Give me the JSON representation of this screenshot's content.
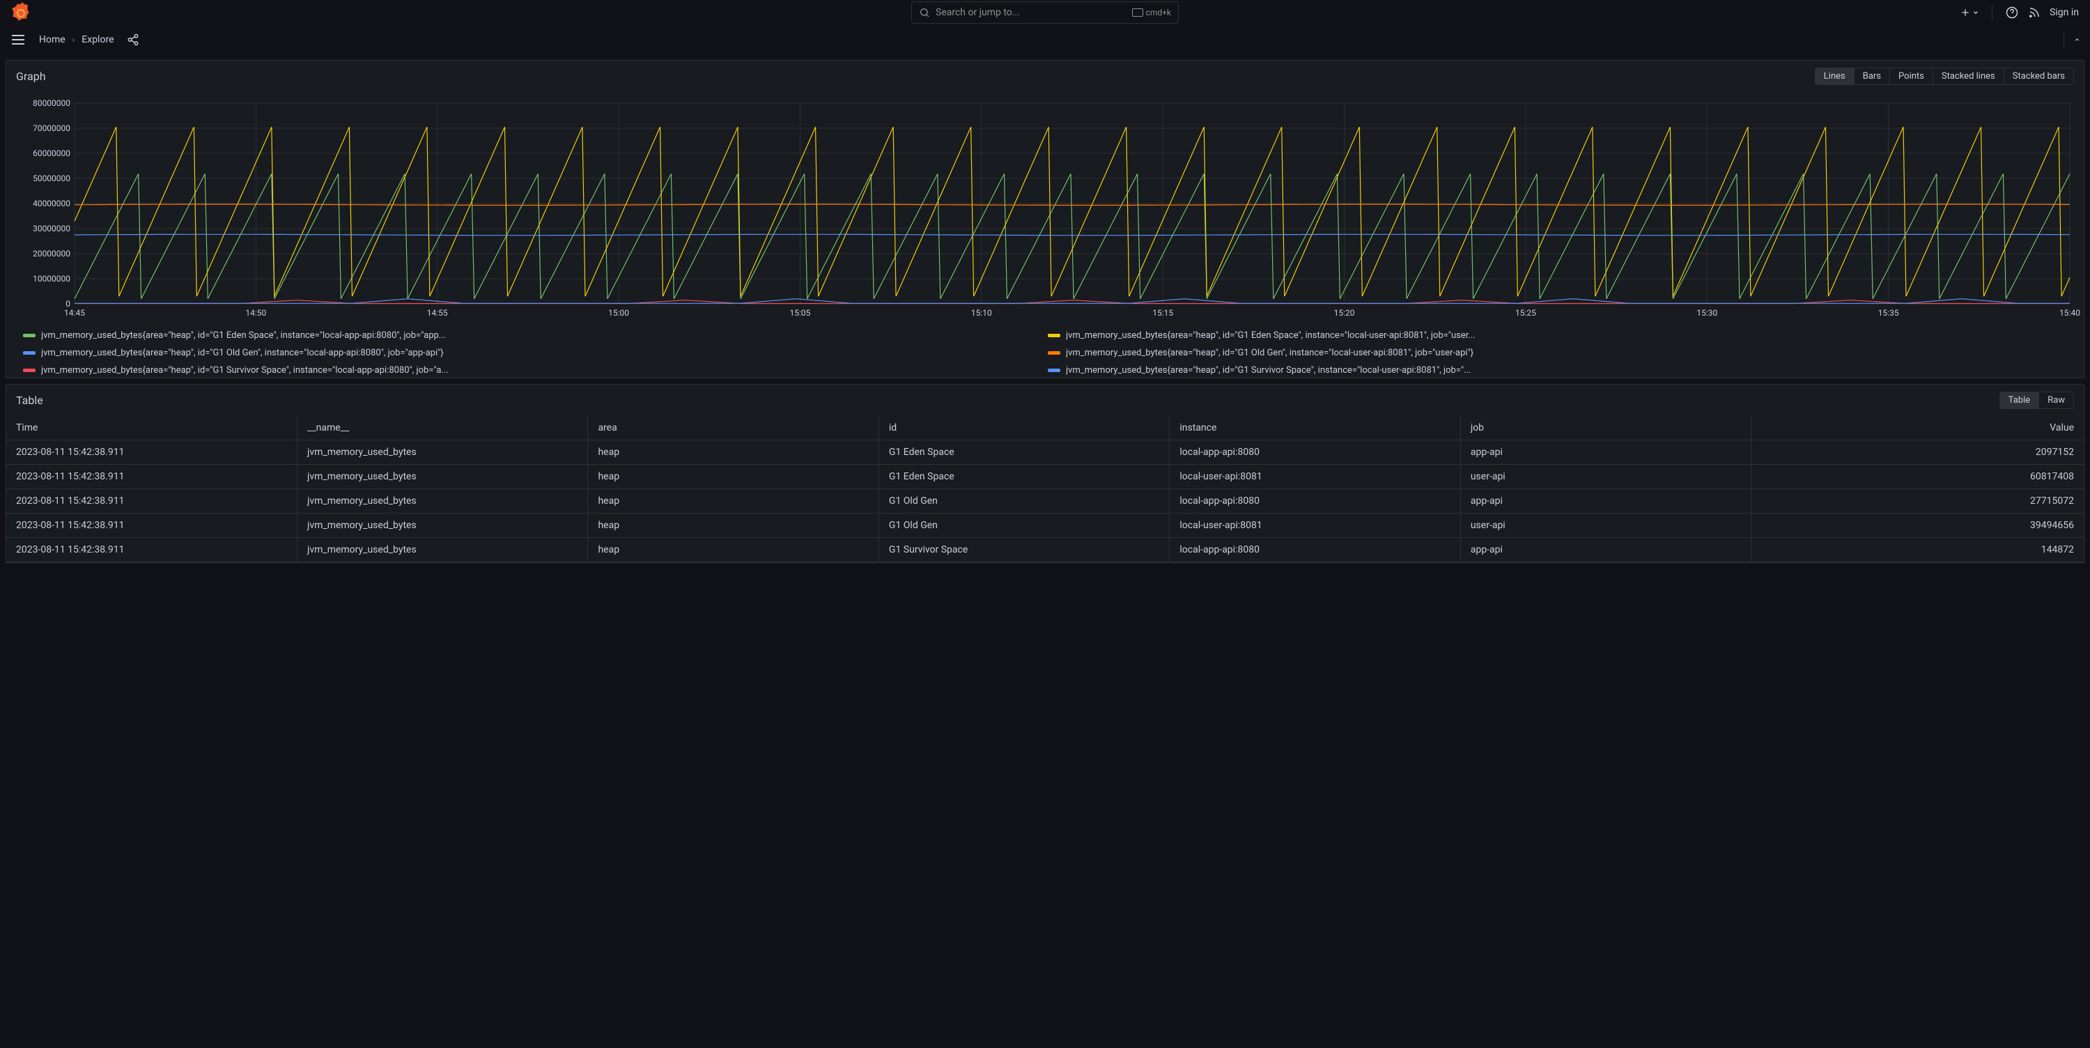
{
  "topbar": {
    "search_placeholder": "Search or jump to...",
    "kbd_hint": "cmd+k",
    "signin": "Sign in"
  },
  "breadcrumb": {
    "home": "Home",
    "explore": "Explore"
  },
  "graph": {
    "title": "Graph",
    "modes": [
      "Lines",
      "Bars",
      "Points",
      "Stacked lines",
      "Stacked bars"
    ],
    "active_mode": 0,
    "type": "line",
    "background_color": "#181b1f",
    "grid_color": "#2c3235",
    "text_color": "#ccccdc",
    "y_axis": {
      "min": 0,
      "max": 80000000,
      "ticks": [
        0,
        10000000,
        20000000,
        30000000,
        40000000,
        50000000,
        60000000,
        70000000,
        80000000
      ],
      "tick_labels": [
        "0",
        "10000000",
        "20000000",
        "30000000",
        "40000000",
        "50000000",
        "60000000",
        "70000000",
        "80000000"
      ]
    },
    "x_axis": {
      "labels": [
        "14:45",
        "14:50",
        "14:55",
        "15:00",
        "15:05",
        "15:10",
        "15:15",
        "15:20",
        "15:25",
        "15:30",
        "15:35",
        "15:40"
      ]
    },
    "series": [
      {
        "label": "jvm_memory_used_bytes{area=\"heap\", id=\"G1 Eden Space\", instance=\"local-app-api:8080\", job=\"app...",
        "color": "#73bf69",
        "shape": "sawtooth",
        "peak": 54000000,
        "trough": 2000000,
        "period": 24,
        "phase": 0,
        "count": 720
      },
      {
        "label": "jvm_memory_used_bytes{area=\"heap\", id=\"G1 Eden Space\", instance=\"local-user-api:8081\", job=\"user...",
        "color": "#f2cc0c",
        "shape": "sawtooth",
        "peak": 73000000,
        "trough": 3000000,
        "period": 28,
        "phase": 12,
        "count": 720
      },
      {
        "label": "jvm_memory_used_bytes{area=\"heap\", id=\"G1 Old Gen\", instance=\"local-app-api:8080\", job=\"app-api\"}",
        "color": "#5794f2",
        "shape": "flat",
        "value": 27500000,
        "count": 720
      },
      {
        "label": "jvm_memory_used_bytes{area=\"heap\", id=\"G1 Old Gen\", instance=\"local-user-api:8081\", job=\"user-api\"}",
        "color": "#ff780a",
        "shape": "flat",
        "value": 39500000,
        "count": 720
      },
      {
        "label": "jvm_memory_used_bytes{area=\"heap\", id=\"G1 Survivor Space\", instance=\"local-app-api:8080\", job=\"a...",
        "color": "#f2495c",
        "shape": "bumpy",
        "base": 150000,
        "amp": 1300000,
        "spikes": [
          80,
          220,
          360,
          500,
          640
        ],
        "count": 720
      },
      {
        "label": "jvm_memory_used_bytes{area=\"heap\", id=\"G1 Survivor Space\", instance=\"local-user-api:8081\", job=\"...",
        "color": "#5794f2",
        "shape": "bumpy",
        "base": 200000,
        "amp": 1800000,
        "spikes": [
          120,
          260,
          400,
          540,
          680
        ],
        "count": 720
      }
    ]
  },
  "table": {
    "title": "Table",
    "modes": [
      "Table",
      "Raw"
    ],
    "active_mode": 0,
    "columns": [
      "Time",
      "__name__",
      "area",
      "id",
      "instance",
      "job",
      "Value"
    ],
    "col_widths": [
      "14%",
      "14%",
      "14%",
      "14%",
      "14%",
      "14%",
      "16%"
    ],
    "rows": [
      [
        "2023-08-11 15:42:38.911",
        "jvm_memory_used_bytes",
        "heap",
        "G1 Eden Space",
        "local-app-api:8080",
        "app-api",
        "2097152"
      ],
      [
        "2023-08-11 15:42:38.911",
        "jvm_memory_used_bytes",
        "heap",
        "G1 Eden Space",
        "local-user-api:8081",
        "user-api",
        "60817408"
      ],
      [
        "2023-08-11 15:42:38.911",
        "jvm_memory_used_bytes",
        "heap",
        "G1 Old Gen",
        "local-app-api:8080",
        "app-api",
        "27715072"
      ],
      [
        "2023-08-11 15:42:38.911",
        "jvm_memory_used_bytes",
        "heap",
        "G1 Old Gen",
        "local-user-api:8081",
        "user-api",
        "39494656"
      ],
      [
        "2023-08-11 15:42:38.911",
        "jvm_memory_used_bytes",
        "heap",
        "G1 Survivor Space",
        "local-app-api:8080",
        "app-api",
        "144872"
      ]
    ]
  }
}
